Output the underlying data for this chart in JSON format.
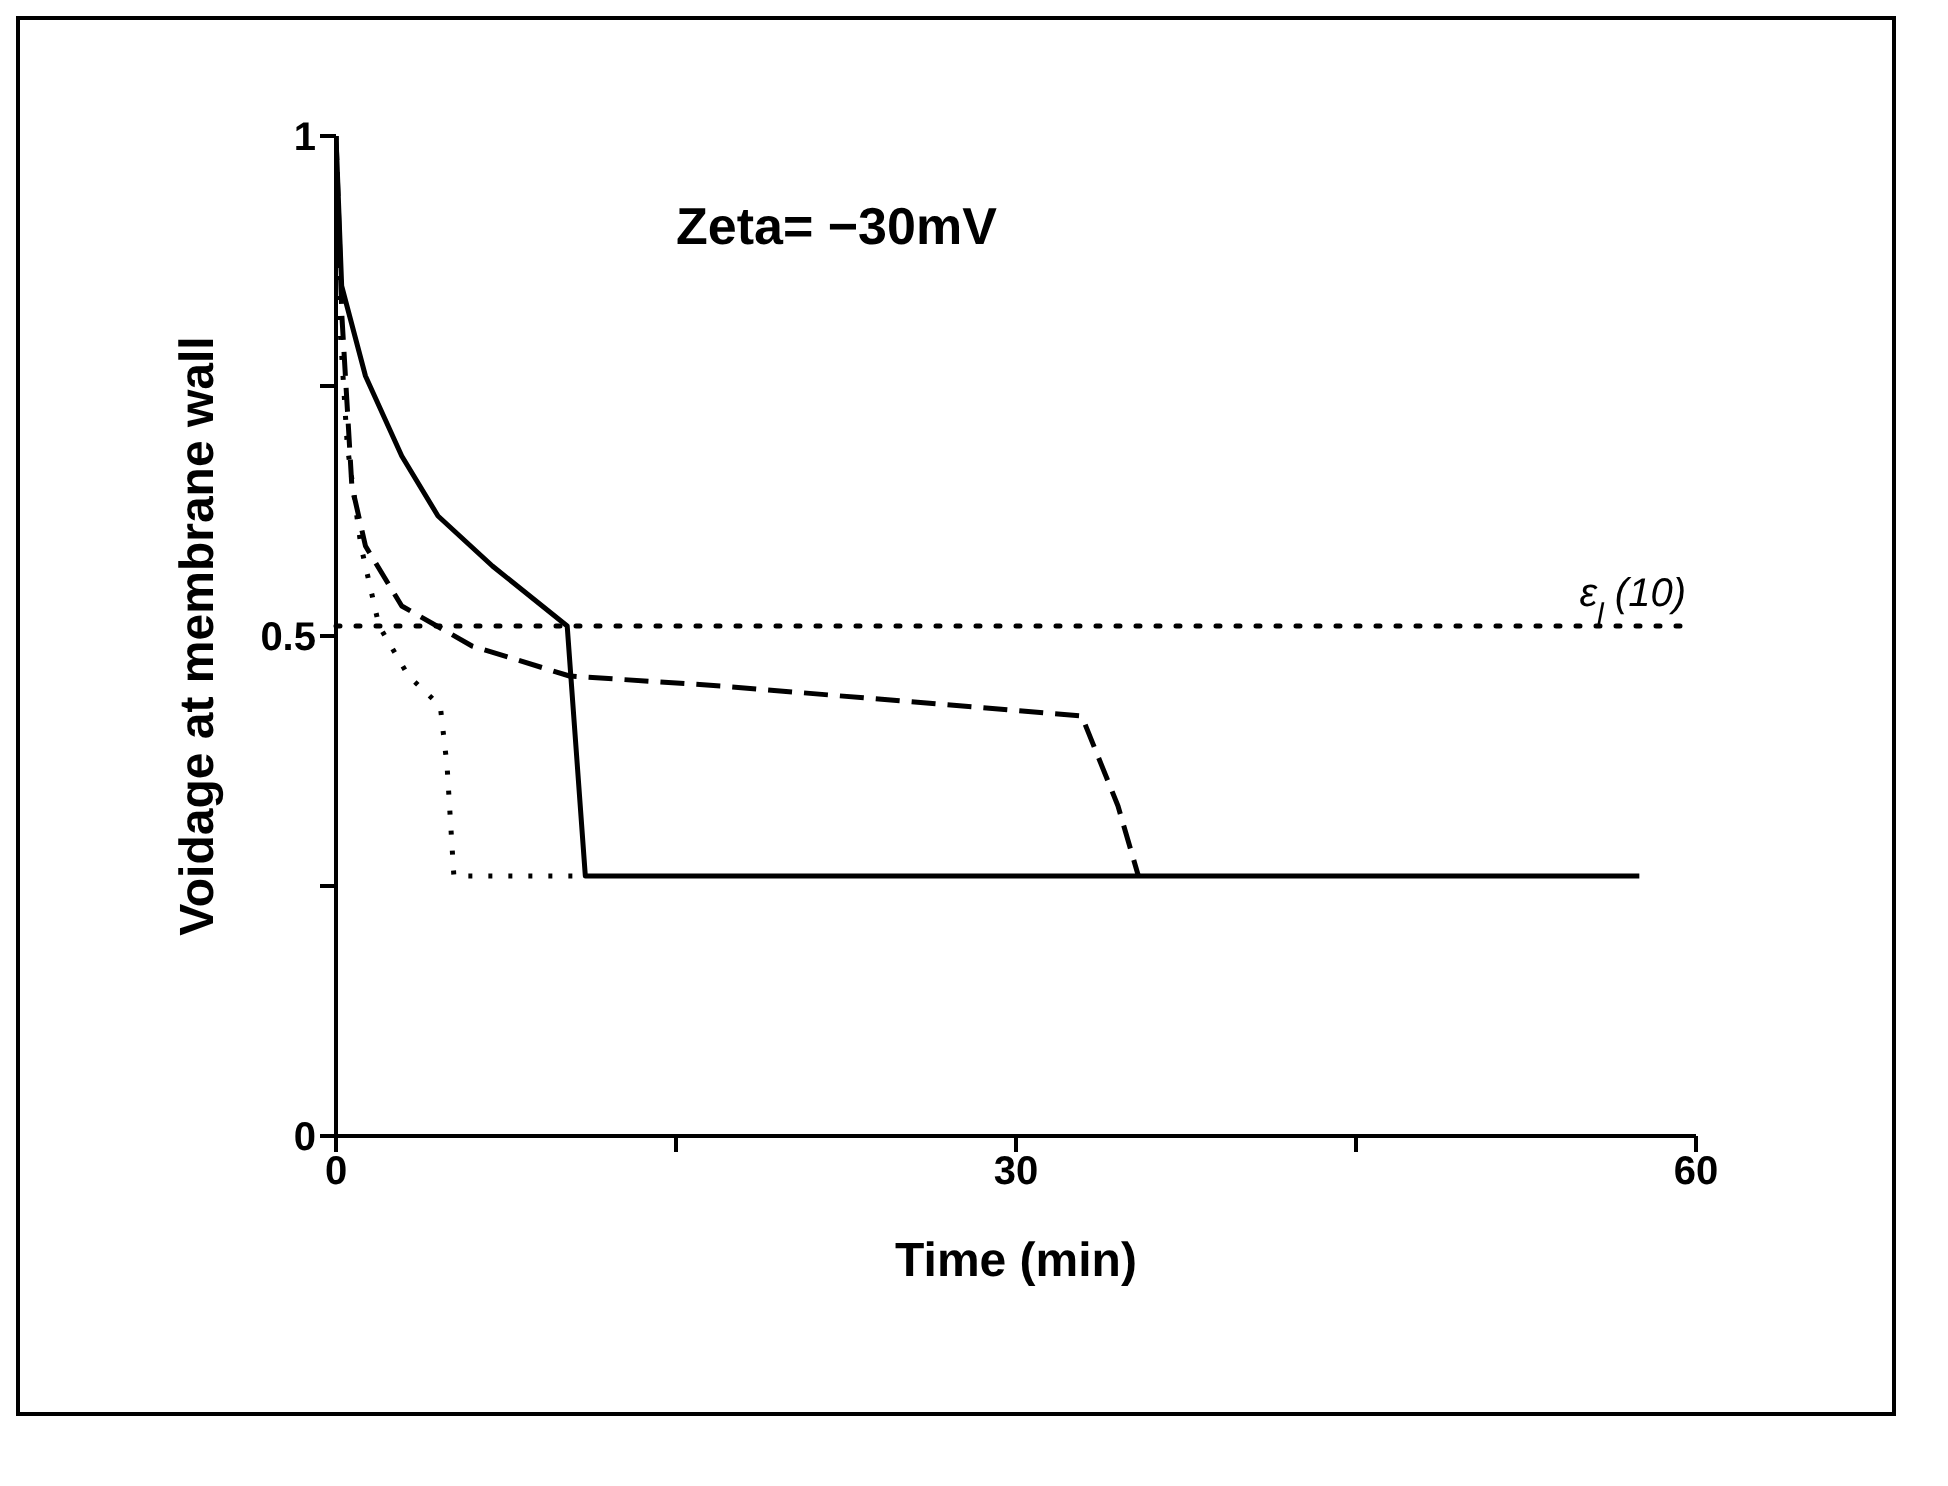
{
  "chart_data": {
    "type": "line",
    "xlabel": "Time (min)",
    "ylabel": "Voidage at membrane wall",
    "annotations": [
      "Zeta= −30mV"
    ],
    "xlim": [
      0,
      60
    ],
    "xticks": [
      0,
      {
        "value": 15,
        "label": null
      },
      30,
      {
        "value": 45,
        "label": null
      },
      60
    ],
    "ylim": [
      0,
      1
    ],
    "yticks": [
      0,
      {
        "value": 0.25,
        "label": null
      },
      0.5,
      {
        "value": 0.75,
        "label": null
      },
      1
    ],
    "grid": false,
    "marker": "none",
    "ref_lines": [
      {
        "axis": "y",
        "value": 0.51,
        "label": "ε$_{l}$ (10)",
        "color": "#000000",
        "line_style": "dotted"
      }
    ],
    "series": [
      {
        "color": "#000000",
        "line_style": "solid",
        "x": [
          0,
          0.25,
          1.3,
          2.9,
          4.5,
          6.9,
          10.2,
          11.0,
          57.5
        ],
        "values": [
          1,
          0.85,
          0.76,
          0.68,
          0.62,
          0.57,
          0.51,
          0.26,
          0.26
        ]
      },
      {
        "color": "#000000",
        "line_style": "dashed",
        "x": [
          0,
          0.26,
          0.7,
          1.3,
          2.9,
          6.0,
          10.3,
          17.0,
          32.9,
          34.5,
          35.4
        ],
        "values": [
          1,
          0.82,
          0.65,
          0.59,
          0.53,
          0.49,
          0.46,
          0.45,
          0.42,
          0.33,
          0.26
        ]
      },
      {
        "color": "#000000",
        "line_style": "dotted",
        "x": [
          0,
          0.2,
          0.5,
          1.1,
          1.9,
          3.2,
          4.6,
          4.9,
          5.2,
          11.0
        ],
        "values": [
          1,
          0.8,
          0.69,
          0.59,
          0.51,
          0.46,
          0.43,
          0.37,
          0.26,
          0.26
        ]
      }
    ]
  }
}
